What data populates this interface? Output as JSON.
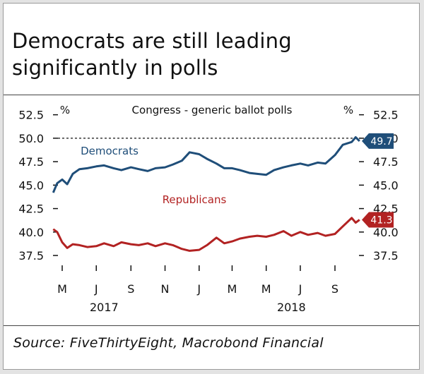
{
  "header": {
    "title_line1": "Democrats are still leading",
    "title_line2": "significantly in polls"
  },
  "footer": {
    "source": "Source: FiveThirtyEight, Macrobond Financial"
  },
  "colors": {
    "democrats": "#1f4e79",
    "republicans": "#b22222",
    "dashed_line": "#111111",
    "axis": "#111111"
  },
  "chart_data": {
    "type": "line",
    "title": "Congress - generic ballot polls",
    "y_unit_left": "%",
    "y_unit_right": "%",
    "ylim": [
      36.3,
      53.3
    ],
    "yticks": [
      "37.5",
      "40.0",
      "42.5",
      "45.0",
      "47.5",
      "50.0",
      "52.5"
    ],
    "x_ticks": [
      "M",
      "J",
      "S",
      "N",
      "J",
      "M",
      "M",
      "J",
      "S"
    ],
    "year_labels": [
      "2017",
      "2018"
    ],
    "reference_line": 50.0,
    "grid": false,
    "series": [
      {
        "name": "Democrats",
        "end_label": "49.7",
        "x": [
          "2017-04-15",
          "2017-04-22",
          "2017-05-01",
          "2017-05-10",
          "2017-05-20",
          "2017-06-01",
          "2017-06-15",
          "2017-07-01",
          "2017-07-15",
          "2017-08-01",
          "2017-08-15",
          "2017-09-01",
          "2017-09-15",
          "2017-10-01",
          "2017-10-15",
          "2017-11-01",
          "2017-11-15",
          "2017-12-01",
          "2017-12-15",
          "2018-01-01",
          "2018-01-15",
          "2018-02-01",
          "2018-02-15",
          "2018-03-01",
          "2018-03-15",
          "2018-04-01",
          "2018-04-15",
          "2018-05-01",
          "2018-05-15",
          "2018-06-01",
          "2018-06-15",
          "2018-07-01",
          "2018-07-15",
          "2018-08-01",
          "2018-08-15",
          "2018-09-01",
          "2018-09-15",
          "2018-10-01",
          "2018-10-08",
          "2018-10-15"
        ],
        "values": [
          44.2,
          45.2,
          45.6,
          45.1,
          46.2,
          46.7,
          46.8,
          47.0,
          47.1,
          46.8,
          46.6,
          46.9,
          46.7,
          46.5,
          46.8,
          46.9,
          47.2,
          47.6,
          48.5,
          48.3,
          47.8,
          47.3,
          46.8,
          46.8,
          46.6,
          46.3,
          46.2,
          46.1,
          46.6,
          46.9,
          47.1,
          47.3,
          47.1,
          47.4,
          47.3,
          48.2,
          49.3,
          49.6,
          50.1,
          49.7
        ]
      },
      {
        "name": "Republicans",
        "end_label": "41.3",
        "x": [
          "2017-04-15",
          "2017-04-22",
          "2017-05-01",
          "2017-05-10",
          "2017-05-20",
          "2017-06-01",
          "2017-06-15",
          "2017-07-01",
          "2017-07-15",
          "2017-08-01",
          "2017-08-15",
          "2017-09-01",
          "2017-09-15",
          "2017-10-01",
          "2017-10-15",
          "2017-11-01",
          "2017-11-15",
          "2017-12-01",
          "2017-12-15",
          "2018-01-01",
          "2018-01-15",
          "2018-02-01",
          "2018-02-15",
          "2018-03-01",
          "2018-03-15",
          "2018-04-01",
          "2018-04-15",
          "2018-05-01",
          "2018-05-15",
          "2018-06-01",
          "2018-06-15",
          "2018-07-01",
          "2018-07-15",
          "2018-08-01",
          "2018-08-15",
          "2018-09-01",
          "2018-09-15",
          "2018-10-01",
          "2018-10-08",
          "2018-10-15"
        ],
        "values": [
          40.3,
          40.0,
          38.9,
          38.3,
          38.7,
          38.6,
          38.4,
          38.5,
          38.8,
          38.5,
          38.9,
          38.7,
          38.6,
          38.8,
          38.5,
          38.8,
          38.6,
          38.2,
          38.0,
          38.1,
          38.6,
          39.4,
          38.8,
          39.0,
          39.3,
          39.5,
          39.6,
          39.5,
          39.7,
          40.1,
          39.6,
          40.0,
          39.7,
          39.9,
          39.6,
          39.8,
          40.6,
          41.5,
          41.0,
          41.3
        ]
      }
    ],
    "annotations": [
      "Democrats",
      "Republicans"
    ]
  }
}
